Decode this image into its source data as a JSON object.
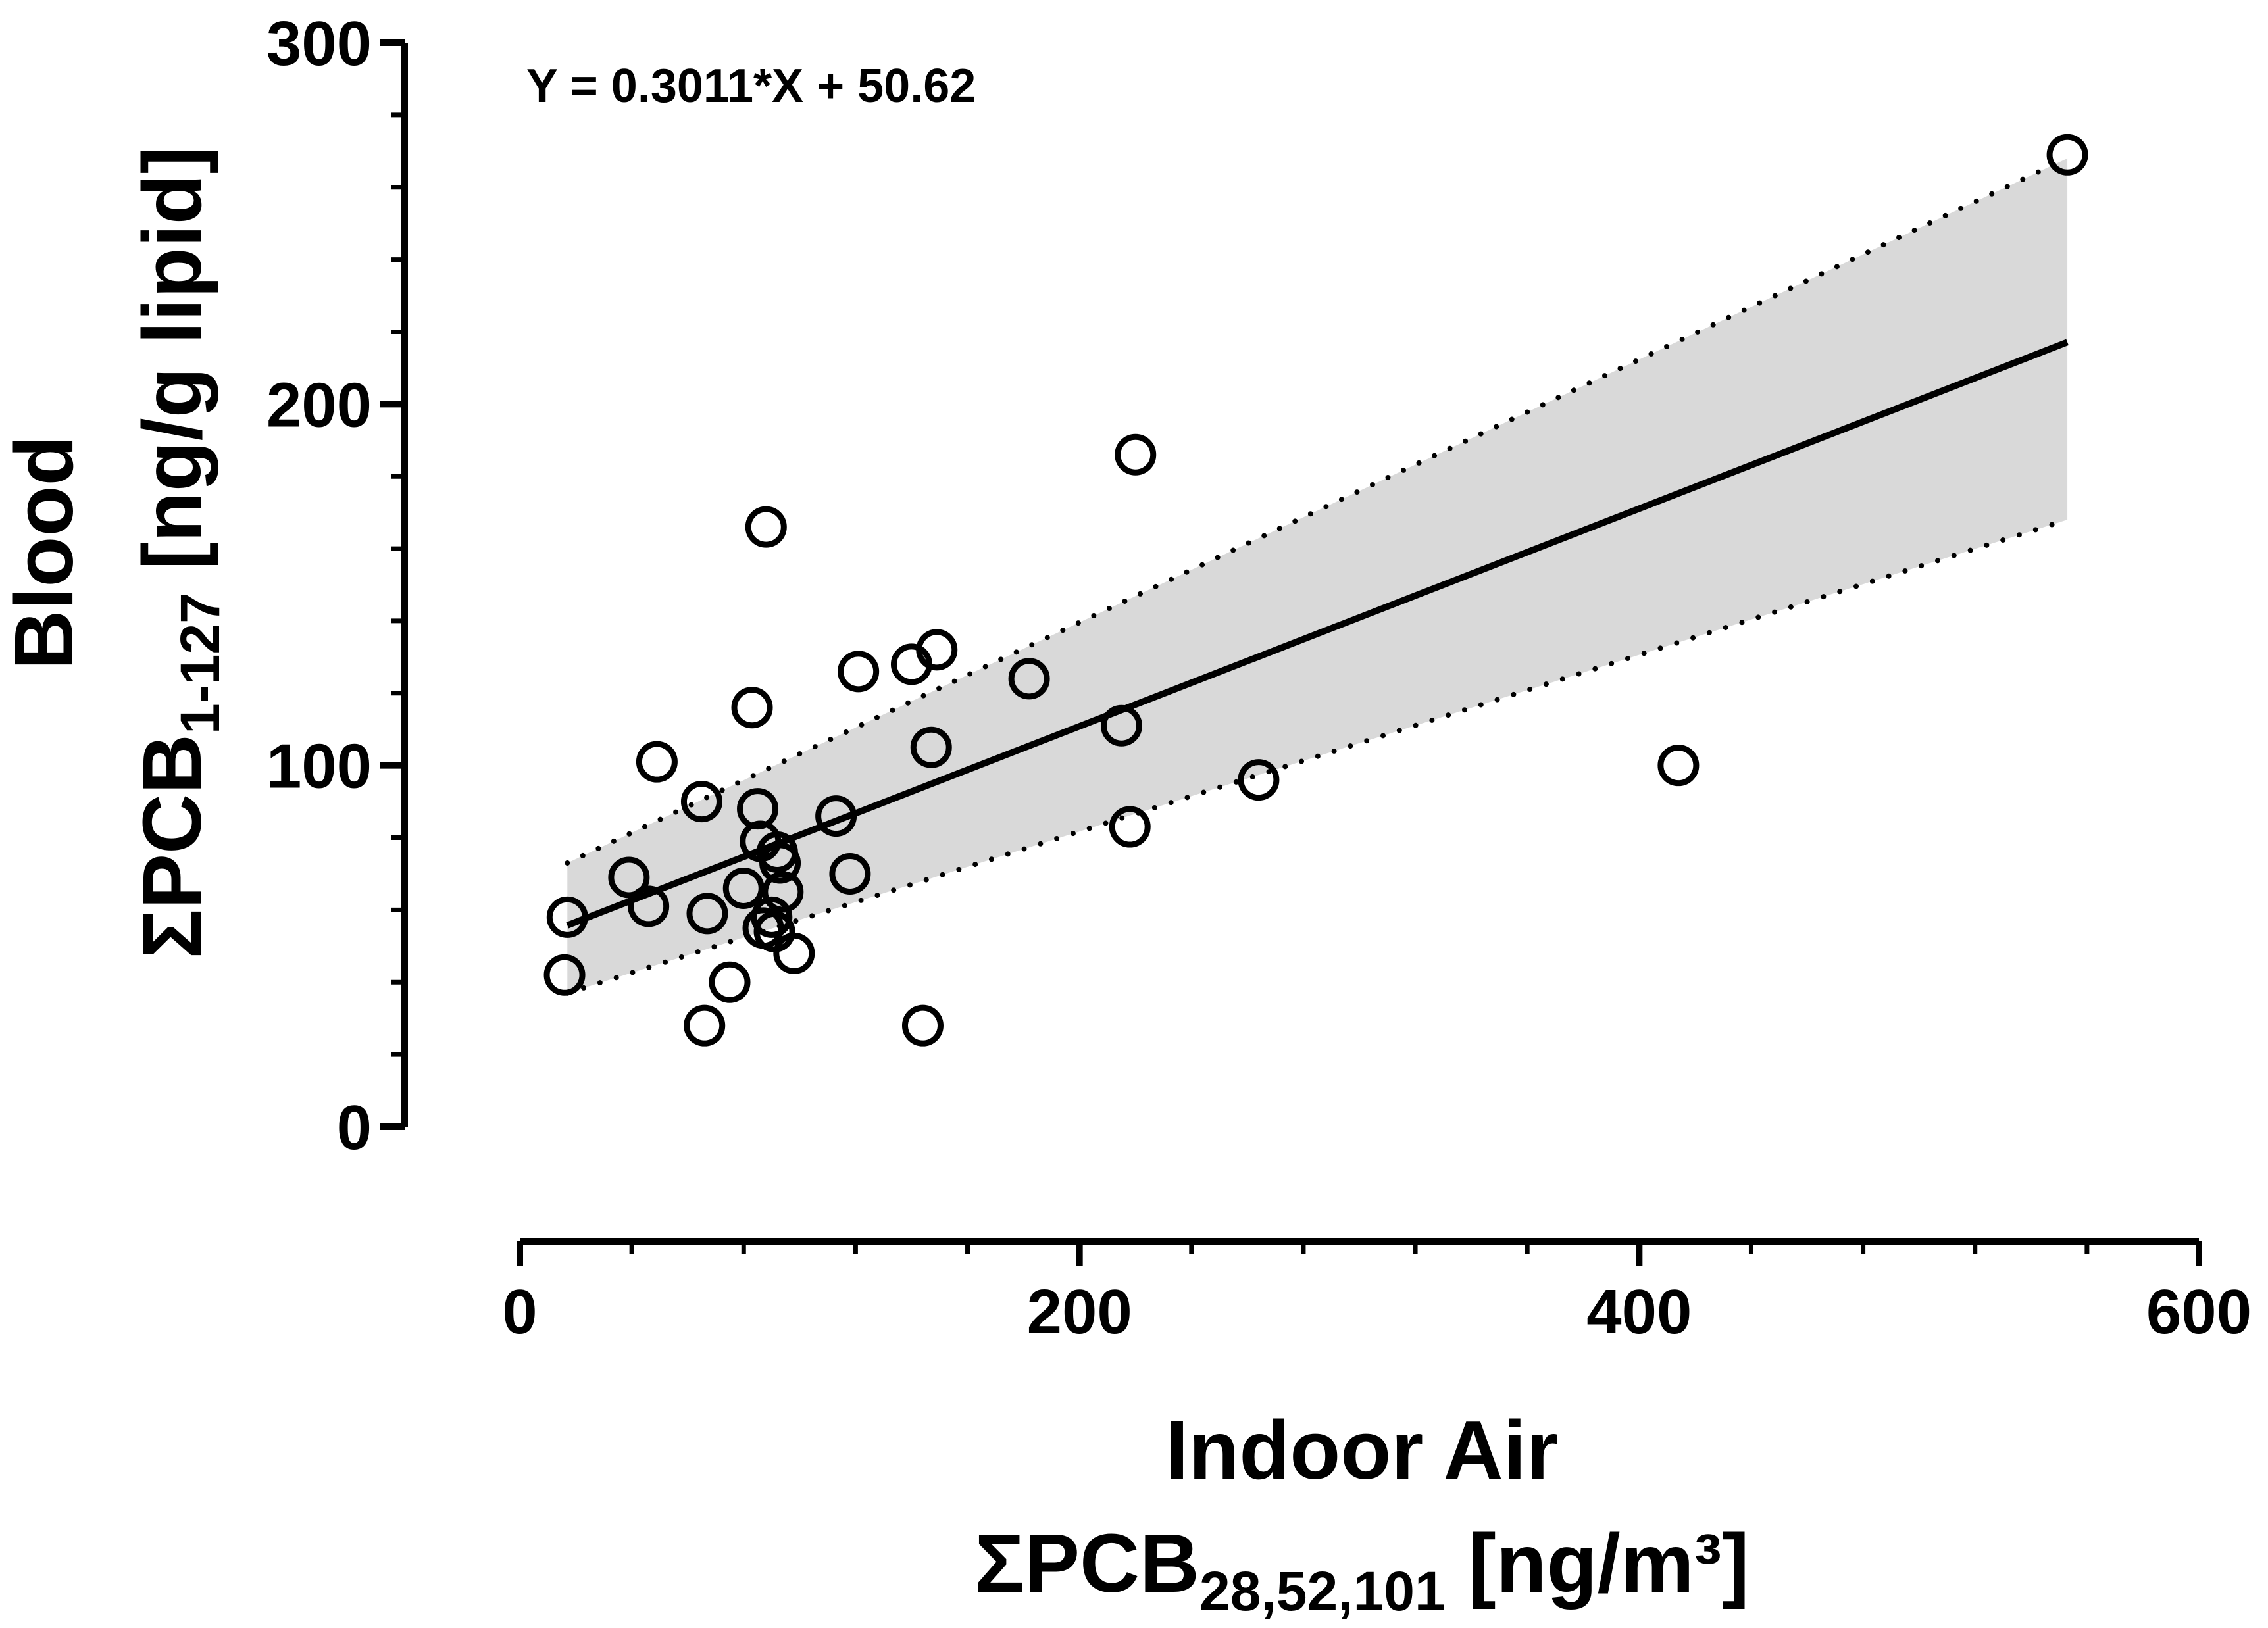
{
  "chart_data": {
    "type": "scatter",
    "xlabel_line1": "Indoor Air",
    "xlabel_line2_main": "ΣPCB",
    "xlabel_line2_sub": "28,52,101",
    "xlabel_line2_unit": " [ng/m³]",
    "ylabel_line1": "Blood",
    "ylabel_line2_main": "ΣPCB",
    "ylabel_line2_sub": "1-127",
    "ylabel_line2_unit": " [ng/g lipid]",
    "equation": "Y = 0.3011*X + 50.62",
    "xlim": [
      0,
      600
    ],
    "ylim": [
      0,
      300
    ],
    "x_ticks": [
      0,
      200,
      400,
      600
    ],
    "y_ticks": [
      0,
      100,
      200,
      300
    ],
    "x_minor_step": 40,
    "y_minor_step": 20,
    "regression": {
      "slope": 0.3011,
      "intercept": 50.62,
      "x_range": [
        17,
        553
      ]
    },
    "confidence_band": {
      "upper": [
        [
          17,
          73
        ],
        [
          553,
          268
        ]
      ],
      "lower": [
        [
          17,
          37
        ],
        [
          553,
          168
        ]
      ]
    },
    "points": [
      [
        17,
        58
      ],
      [
        16,
        42
      ],
      [
        39,
        69
      ],
      [
        46,
        61
      ],
      [
        49,
        101
      ],
      [
        65,
        90
      ],
      [
        67,
        59
      ],
      [
        66,
        28
      ],
      [
        75,
        40
      ],
      [
        80,
        66
      ],
      [
        83,
        116
      ],
      [
        85,
        88
      ],
      [
        86,
        79
      ],
      [
        87,
        55
      ],
      [
        88,
        166
      ],
      [
        90,
        58
      ],
      [
        91,
        54
      ],
      [
        92,
        76
      ],
      [
        93,
        73
      ],
      [
        94,
        65
      ],
      [
        98,
        48
      ],
      [
        113,
        86
      ],
      [
        118,
        70
      ],
      [
        121,
        126
      ],
      [
        140,
        128
      ],
      [
        144,
        28
      ],
      [
        147,
        105
      ],
      [
        149,
        132
      ],
      [
        182,
        124
      ],
      [
        215,
        111
      ],
      [
        218,
        83
      ],
      [
        220,
        186
      ],
      [
        264,
        96
      ],
      [
        414,
        100
      ],
      [
        553,
        269
      ]
    ]
  }
}
